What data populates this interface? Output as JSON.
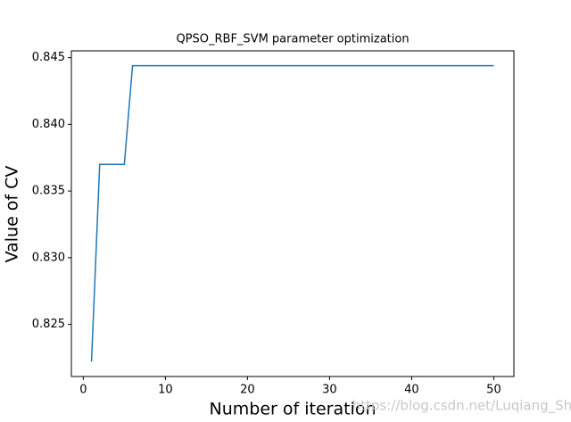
{
  "chart_data": {
    "type": "line",
    "title": "QPSO_RBF_SVM parameter optimization",
    "x_label": "Number of iteration",
    "y_label": "Value of CV",
    "annotation": "https://blog.csdn.net/Luqiang_Shi",
    "x": [
      1,
      2,
      3,
      4,
      5,
      6,
      7,
      8,
      9,
      10,
      11,
      12,
      13,
      14,
      15,
      16,
      17,
      18,
      19,
      20,
      21,
      22,
      23,
      24,
      25,
      26,
      27,
      28,
      29,
      30,
      31,
      32,
      33,
      34,
      35,
      36,
      37,
      38,
      39,
      40,
      41,
      42,
      43,
      44,
      45,
      46,
      47,
      48,
      49,
      50
    ],
    "series": [
      {
        "name": "CV",
        "color": "#1f77b4",
        "values": [
          0.8222,
          0.837,
          0.837,
          0.837,
          0.837,
          0.8444,
          0.8444,
          0.8444,
          0.8444,
          0.8444,
          0.8444,
          0.8444,
          0.8444,
          0.8444,
          0.8444,
          0.8444,
          0.8444,
          0.8444,
          0.8444,
          0.8444,
          0.8444,
          0.8444,
          0.8444,
          0.8444,
          0.8444,
          0.8444,
          0.8444,
          0.8444,
          0.8444,
          0.8444,
          0.8444,
          0.8444,
          0.8444,
          0.8444,
          0.8444,
          0.8444,
          0.8444,
          0.8444,
          0.8444,
          0.8444,
          0.8444,
          0.8444,
          0.8444,
          0.8444,
          0.8444,
          0.8444,
          0.8444,
          0.8444,
          0.8444,
          0.8444
        ]
      }
    ],
    "xlim": [
      -1.45,
      52.45
    ],
    "xticks": [
      0,
      10,
      20,
      30,
      40,
      50
    ],
    "ylim": [
      0.82109,
      0.84551
    ],
    "yticks": [
      {
        "value": 0.825,
        "label": "0.825"
      },
      {
        "value": 0.83,
        "label": "0.830"
      },
      0.835,
      {
        "value": 0.84,
        "label": "0.840"
      },
      0.845
    ]
  }
}
